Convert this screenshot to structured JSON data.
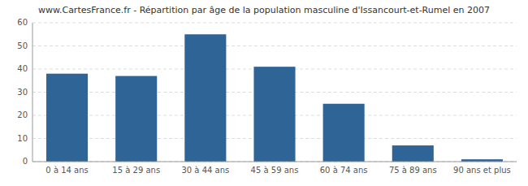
{
  "chart_data": {
    "type": "bar",
    "title": "www.CartesFrance.fr - Répartition par âge de la population masculine d'Issancourt-et-Rumel en 2007",
    "categories": [
      "0 à 14 ans",
      "15 à 29 ans",
      "30 à 44 ans",
      "45 à 59 ans",
      "60 à 74 ans",
      "75 à 89 ans",
      "90 ans et plus"
    ],
    "values": [
      38,
      37,
      55,
      41,
      25,
      7,
      1
    ],
    "color": "#2e6496",
    "ylim": [
      0,
      60
    ],
    "yticks": [
      0,
      10,
      20,
      30,
      40,
      50,
      60
    ],
    "grid": true
  }
}
